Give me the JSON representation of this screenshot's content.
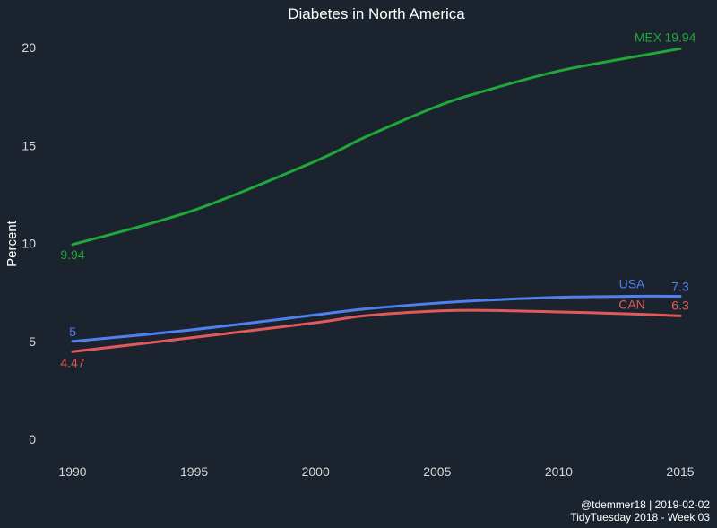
{
  "chart_data": {
    "type": "line",
    "title": "Diabetes in North America",
    "xlabel": "",
    "ylabel": "Percent",
    "xlim": [
      1990,
      2015
    ],
    "ylim": [
      0,
      20
    ],
    "x_ticks": [
      "1990",
      "1995",
      "2000",
      "2005",
      "2010",
      "2015"
    ],
    "y_ticks": [
      "0",
      "5",
      "10",
      "15",
      "20"
    ],
    "grid": false,
    "legend": "none (series labeled at line ends)",
    "x": [
      1990,
      1995,
      2000,
      2002,
      2005,
      2007,
      2010,
      2013,
      2015
    ],
    "series": [
      {
        "name": "MEX",
        "color": "#1fa83a",
        "values": [
          9.94,
          11.7,
          14.2,
          15.4,
          17.0,
          17.8,
          18.8,
          19.5,
          19.94
        ],
        "start_label": "9.94",
        "end_label": "19.94"
      },
      {
        "name": "USA",
        "color": "#5080f0",
        "values": [
          5.0,
          5.6,
          6.35,
          6.65,
          6.95,
          7.1,
          7.25,
          7.3,
          7.3
        ],
        "start_label": "5",
        "end_label": "7.3"
      },
      {
        "name": "CAN",
        "color": "#e05a5a",
        "values": [
          4.47,
          5.2,
          5.95,
          6.3,
          6.55,
          6.58,
          6.5,
          6.4,
          6.3
        ],
        "start_label": "4.47",
        "end_label": "6.3"
      }
    ]
  },
  "caption": {
    "line1": "@tdemmer18 | 2019-02-02",
    "line2": "TidyTuesday 2018 - Week 03"
  }
}
